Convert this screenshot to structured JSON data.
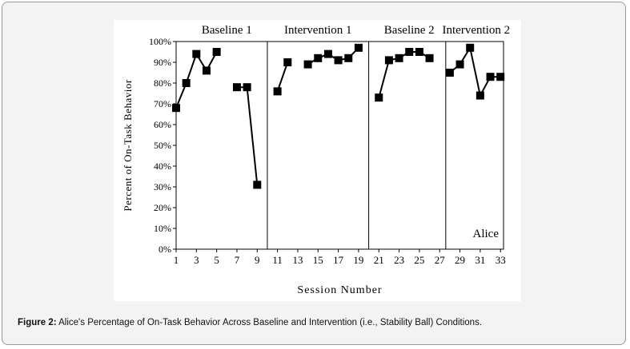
{
  "chart_data": {
    "type": "line",
    "title": "",
    "xlabel": "Session Number",
    "ylabel": "Percent of On-Task Behavior",
    "ylim": [
      0,
      100
    ],
    "y_ticks": [
      "0%",
      "10%",
      "20%",
      "30%",
      "40%",
      "50%",
      "60%",
      "70%",
      "80%",
      "90%",
      "100%"
    ],
    "x_ticks": [
      "1",
      "3",
      "5",
      "7",
      "9",
      "11",
      "13",
      "15",
      "17",
      "19",
      "21",
      "23",
      "25",
      "27",
      "29",
      "31",
      "33"
    ],
    "phases": [
      {
        "label": "Baseline 1"
      },
      {
        "label": "Intervention 1"
      },
      {
        "label": "Baseline 2"
      },
      {
        "label": "Intervention 2"
      }
    ],
    "annotation": "Alice",
    "grid": false,
    "series": [
      {
        "points": [
          [
            1,
            68
          ],
          [
            2,
            80
          ],
          [
            3,
            94
          ],
          [
            4,
            86
          ],
          [
            5,
            95
          ]
        ]
      },
      {
        "points": [
          [
            7,
            78
          ],
          [
            8,
            78
          ],
          [
            9,
            31
          ]
        ]
      },
      {
        "points": [
          [
            11,
            76
          ],
          [
            12,
            90
          ]
        ]
      },
      {
        "points": [
          [
            14,
            89
          ],
          [
            15,
            92
          ],
          [
            16,
            94
          ],
          [
            17,
            91
          ],
          [
            18,
            92
          ],
          [
            19,
            97
          ]
        ]
      },
      {
        "points": [
          [
            21,
            73
          ],
          [
            22,
            91
          ],
          [
            23,
            92
          ],
          [
            24,
            95
          ],
          [
            25,
            95
          ],
          [
            26,
            92
          ]
        ]
      },
      {
        "points": [
          [
            28,
            85
          ],
          [
            29,
            89
          ],
          [
            30,
            97
          ],
          [
            31,
            74
          ],
          [
            32,
            83
          ],
          [
            33,
            83
          ]
        ]
      }
    ]
  },
  "caption": {
    "label": "Figure 2:",
    "text": " Alice's Percentage of On-Task Behavior Across Baseline and Intervention (i.e., Stability Ball) Conditions."
  }
}
